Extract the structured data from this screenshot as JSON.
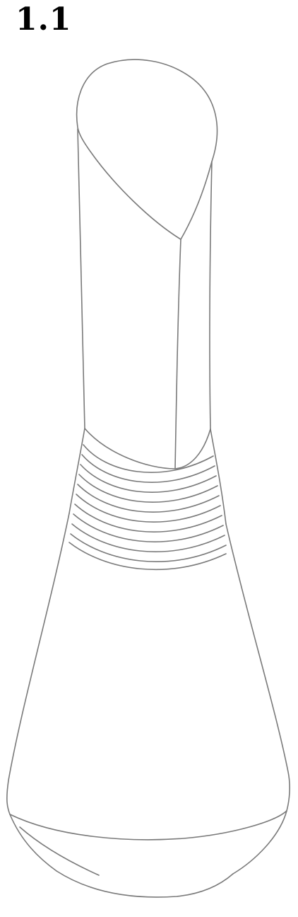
{
  "figure": {
    "label": "1.1"
  }
}
